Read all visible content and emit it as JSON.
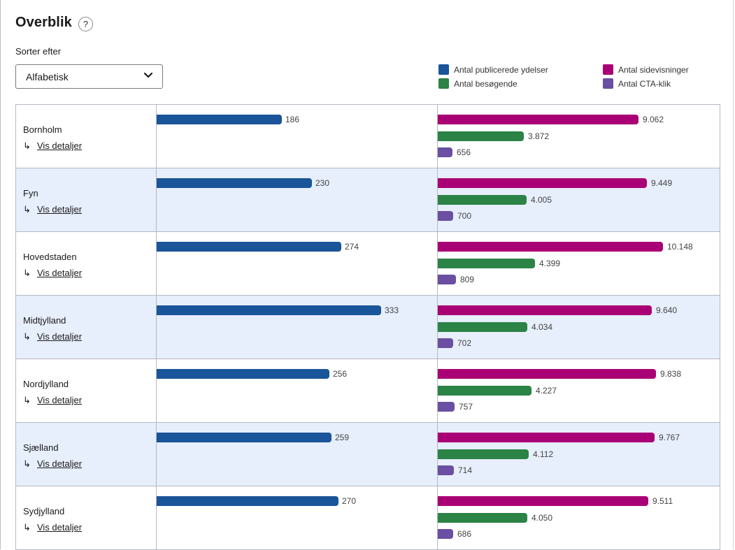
{
  "header": {
    "title": "Overblik",
    "help_icon": "?"
  },
  "sort": {
    "label": "Sorter efter",
    "selected": "Alfabetisk"
  },
  "legend": [
    {
      "label": "Antal publicerede ydelser",
      "color": "#1a5499"
    },
    {
      "label": "Antal besøgende",
      "color": "#2b8346"
    },
    {
      "label": "Antal sidevisninger",
      "color": "#aa0075"
    },
    {
      "label": "Antal CTA-klik",
      "color": "#6a4fa3"
    }
  ],
  "row_link_label": "Vis detaljer",
  "row_link_arrow": "↳",
  "chart_data": {
    "type": "bar",
    "orientation": "horizontal",
    "categories": [
      "Bornholm",
      "Fyn",
      "Hovedstaden",
      "Midtjylland",
      "Nordjylland",
      "Sjælland",
      "Sydjylland"
    ],
    "series": [
      {
        "name": "Antal publicerede ydelser",
        "panel": "left",
        "color": "#1a5499",
        "values": [
          186,
          230,
          274,
          333,
          256,
          259,
          270
        ],
        "labels": [
          "186",
          "230",
          "274",
          "333",
          "256",
          "259",
          "270"
        ]
      },
      {
        "name": "Antal sidevisninger",
        "panel": "right",
        "color": "#aa0075",
        "values": [
          9062,
          9449,
          10148,
          9640,
          9838,
          9767,
          9511
        ],
        "labels": [
          "9.062",
          "9.449",
          "10.148",
          "9.640",
          "9.838",
          "9.767",
          "9.511"
        ]
      },
      {
        "name": "Antal besøgende",
        "panel": "right",
        "color": "#2b8346",
        "values": [
          3872,
          4005,
          4399,
          4034,
          4227,
          4112,
          4050
        ],
        "labels": [
          "3.872",
          "4.005",
          "4.399",
          "4.034",
          "4.227",
          "4.112",
          "4.050"
        ]
      },
      {
        "name": "Antal CTA-klik",
        "panel": "right",
        "color": "#6a4fa3",
        "values": [
          656,
          700,
          809,
          702,
          757,
          714,
          686
        ],
        "labels": [
          "656",
          "700",
          "809",
          "702",
          "757",
          "714",
          "686"
        ]
      }
    ],
    "title": "Overblik",
    "xlabel": "",
    "ylabel": "",
    "grid": false,
    "legend_position": "top-right"
  }
}
